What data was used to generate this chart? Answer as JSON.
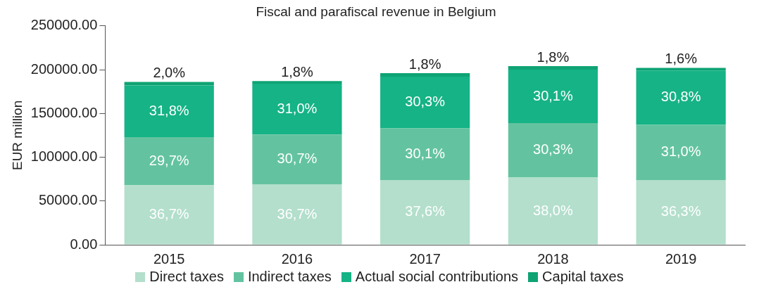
{
  "chart_data": {
    "type": "bar",
    "title": "Fiscal and parafiscal revenue in Belgium",
    "ylabel": "EUR million",
    "categories": [
      "2015",
      "2016",
      "2017",
      "2018",
      "2019"
    ],
    "stacked": true,
    "ylim": [
      0,
      250000
    ],
    "yticks": [
      {
        "value": 0,
        "label": "0.00"
      },
      {
        "value": 50000,
        "label": "50000.00"
      },
      {
        "value": 100000,
        "label": "100000.00"
      },
      {
        "value": 150000,
        "label": "150000.00"
      },
      {
        "value": 200000,
        "label": "200000.00"
      },
      {
        "value": 250000,
        "label": "250000.00"
      }
    ],
    "grid": false,
    "legend": "bottom",
    "series": [
      {
        "name": "Direct taxes",
        "color": "#b3dfcc",
        "values": [
          68000,
          69000,
          74000,
          77000,
          74000
        ]
      },
      {
        "name": "Indirect taxes",
        "color": "#63c3a0",
        "values": [
          55000,
          57000,
          59000,
          62000,
          63000
        ]
      },
      {
        "name": "Actual social contributions",
        "color": "#15b386",
        "values": [
          59000,
          58000,
          59000,
          61000,
          62000
        ]
      },
      {
        "name": "Capital taxes",
        "color": "#0fa374",
        "values": [
          4000,
          3000,
          4000,
          4000,
          3000
        ]
      }
    ],
    "annotations": [
      {
        "text": "36,7%",
        "x": "2015",
        "y": 68000
      },
      {
        "text": "36,7%",
        "x": "2016",
        "y": 69000
      },
      {
        "text": "37,6%",
        "x": "2017",
        "y": 74000
      },
      {
        "text": "38,0%",
        "x": "2018",
        "y": 77000
      },
      {
        "text": "36,3%",
        "x": "2019",
        "y": 74000
      },
      {
        "text": "29,7%",
        "x": "2015",
        "y": 123000
      },
      {
        "text": "30,7%",
        "x": "2016",
        "y": 126000
      },
      {
        "text": "30,1%",
        "x": "2017",
        "y": 133000
      },
      {
        "text": "30,3%",
        "x": "2018",
        "y": 139000
      },
      {
        "text": "31,0%",
        "x": "2019",
        "y": 137000
      },
      {
        "text": "31,8%",
        "x": "2015",
        "y": 182000
      },
      {
        "text": "31,0%",
        "x": "2016",
        "y": 184000
      },
      {
        "text": "30,3%",
        "x": "2017",
        "y": 192000
      },
      {
        "text": "30,1%",
        "x": "2018",
        "y": 200000
      },
      {
        "text": "30,8%",
        "x": "2019",
        "y": 199000
      },
      {
        "text": "2,0%",
        "x": "2015",
        "y": 186000
      },
      {
        "text": "1,8%",
        "x": "2016",
        "y": 187000
      },
      {
        "text": "1,8%",
        "x": "2017",
        "y": 196000
      },
      {
        "text": "1,8%",
        "x": "2018",
        "y": 204000
      },
      {
        "text": "1,6%",
        "x": "2019",
        "y": 202000
      }
    ]
  }
}
